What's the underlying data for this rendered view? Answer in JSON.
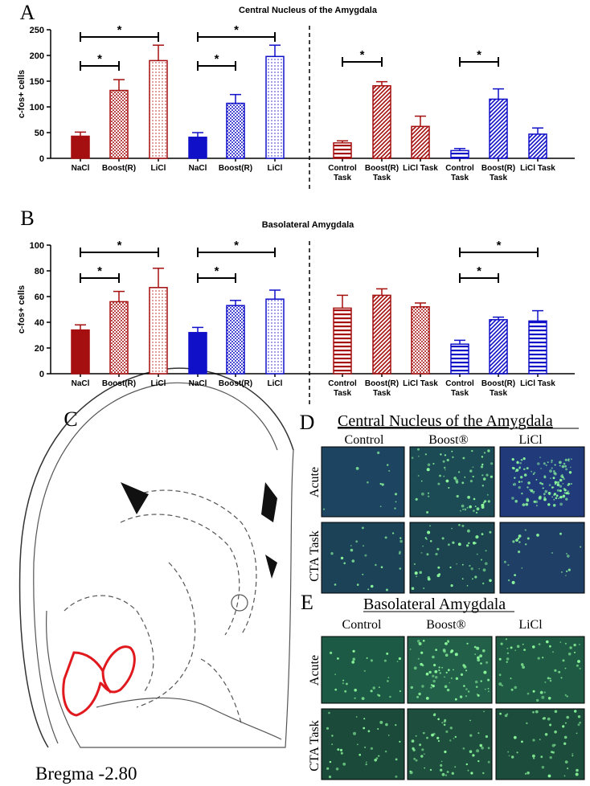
{
  "chart_data": [
    {
      "type": "bar",
      "title": "Central Nucleus of the Amygdala",
      "y_label": "c-fos+ cells",
      "categories": [
        "NaCl",
        "Boost(R)",
        "LiCl",
        "NaCl",
        "Boost(R)",
        "LiCl",
        "Control Task",
        "Boost(R) Task",
        "LiCl Task",
        "Control Task",
        "Boost(R) Task",
        "LiCl Task"
      ],
      "values": [
        43,
        132,
        190,
        41,
        107,
        198,
        30,
        141,
        62,
        15,
        115,
        47
      ],
      "errors": [
        8,
        21,
        30,
        9,
        17,
        22,
        4,
        8,
        20,
        4,
        20,
        12
      ],
      "colors": [
        "#a50f0f",
        "#a50f0f",
        "#a50f0f",
        "#1010c8",
        "#1010c8",
        "#1010c8",
        "#a50f0f",
        "#a50f0f",
        "#a50f0f",
        "#1010c8",
        "#1010c8",
        "#1010c8"
      ],
      "patterns": [
        "solid",
        "dots",
        "fine-dots",
        "solid",
        "dots",
        "fine-dots",
        "horizontal",
        "diagonal",
        "diagonal",
        "horizontal",
        "diagonal",
        "diagonal"
      ],
      "ylim": [
        0,
        250
      ],
      "yticks": [
        0,
        50,
        100,
        150,
        200,
        250
      ],
      "brackets": [
        {
          "from": 0,
          "to": 1,
          "label": "*"
        },
        {
          "from": 0,
          "to": 2,
          "label": "*"
        },
        {
          "from": 3,
          "to": 4,
          "label": "*"
        },
        {
          "from": 3,
          "to": 5,
          "label": "*"
        },
        {
          "from": 6,
          "to": 7,
          "label": "*"
        },
        {
          "from": 9,
          "to": 10,
          "label": "*"
        }
      ]
    },
    {
      "type": "bar",
      "title": "Basolateral Amygdala",
      "y_label": "c-fos+ cells",
      "categories": [
        "NaCl",
        "Boost(R)",
        "LiCl",
        "NaCl",
        "Boost(R)",
        "LiCl",
        "Control Task",
        "Boost(R) Task",
        "LiCl Task",
        "Control Task",
        "Boost(R) Task",
        "LiCl Task"
      ],
      "values": [
        34,
        56,
        67,
        32,
        53,
        58,
        51,
        61,
        52,
        23,
        42,
        41
      ],
      "errors": [
        4,
        8,
        15,
        4,
        4,
        7,
        10,
        5,
        3,
        3,
        2,
        8
      ],
      "colors": [
        "#a50f0f",
        "#a50f0f",
        "#a50f0f",
        "#1010c8",
        "#1010c8",
        "#1010c8",
        "#a50f0f",
        "#a50f0f",
        "#a50f0f",
        "#1010c8",
        "#1010c8",
        "#1010c8"
      ],
      "patterns": [
        "solid",
        "dots",
        "fine-dots",
        "solid",
        "dots",
        "fine-dots",
        "horizontal",
        "diagonal",
        "dots",
        "horizontal",
        "diagonal",
        "horizontal"
      ],
      "ylim": [
        0,
        100
      ],
      "yticks": [
        0,
        20,
        40,
        60,
        80,
        100
      ],
      "brackets": [
        {
          "from": 0,
          "to": 1,
          "label": "*"
        },
        {
          "from": 0,
          "to": 2,
          "label": "*"
        },
        {
          "from": 3,
          "to": 4,
          "label": "*"
        },
        {
          "from": 3,
          "to": 5,
          "label": "*"
        },
        {
          "from": 9,
          "to": 10,
          "label": "*"
        },
        {
          "from": 9,
          "to": 11,
          "label": "*"
        }
      ]
    }
  ],
  "panel_labels": [
    "A",
    "B",
    "C",
    "D",
    "E"
  ],
  "panel_c": {
    "caption": "Bregma -2.80"
  },
  "panel_d": {
    "title": "Central Nucleus of the Amygdala",
    "columns": [
      "Control",
      "Boost®",
      "LiCl"
    ],
    "rows": [
      "Acute",
      "CTA Task"
    ]
  },
  "panel_e": {
    "title": "Basolateral Amygdala",
    "columns": [
      "Control",
      "Boost®",
      "LiCl"
    ],
    "rows": [
      "Acute",
      "CTA Task"
    ]
  }
}
